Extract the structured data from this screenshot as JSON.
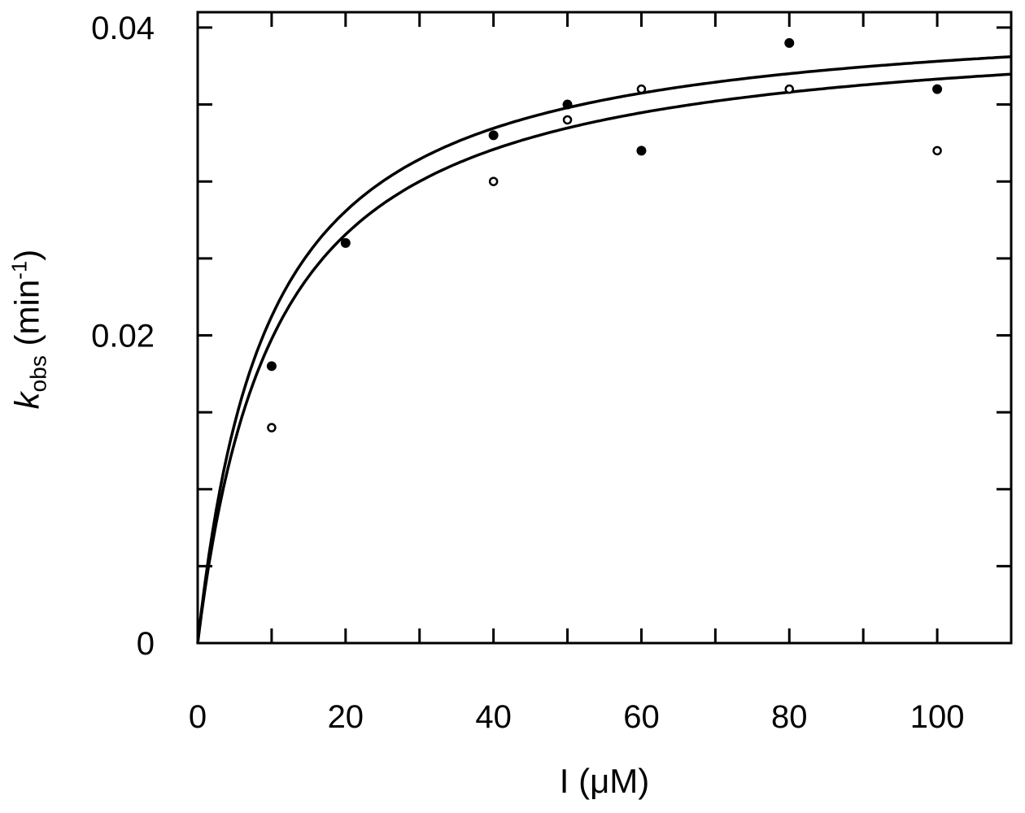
{
  "chart_data": {
    "type": "scatter",
    "xlabel": "I  (μM)",
    "ylabel": {
      "symbol": "k",
      "subscript": "obs",
      "unit_prefix": " (min",
      "unit_sup": "-1",
      "unit_suffix": ")"
    },
    "xlim": [
      0,
      110
    ],
    "ylim": [
      0,
      0.041
    ],
    "x_ticks_labeled": [
      0,
      20,
      40,
      60,
      80,
      100
    ],
    "x_ticks_minor": [
      10,
      30,
      50,
      70,
      90,
      110
    ],
    "y_ticks_labeled": [
      0,
      0.02,
      0.04
    ],
    "y_tick_labels": [
      "0",
      "0.02",
      "0.04"
    ],
    "y_ticks_minor": [
      0.005,
      0.01,
      0.015,
      0.025,
      0.03,
      0.035
    ],
    "grid": false,
    "series": [
      {
        "marker": "filled-circle",
        "points": [
          [
            10,
            0.018
          ],
          [
            20,
            0.026
          ],
          [
            40,
            0.033
          ],
          [
            50,
            0.035
          ],
          [
            60,
            0.032
          ],
          [
            80,
            0.039
          ],
          [
            100,
            0.036
          ]
        ]
      },
      {
        "marker": "open-circle",
        "points": [
          [
            10,
            0.014
          ],
          [
            40,
            0.03
          ],
          [
            50,
            0.034
          ],
          [
            60,
            0.036
          ],
          [
            80,
            0.036
          ],
          [
            100,
            0.032
          ]
        ]
      }
    ],
    "fit_curves": [
      {
        "type": "hyperbolic",
        "kmax": 0.0414,
        "K": 9.5
      },
      {
        "type": "hyperbolic",
        "kmax": 0.0405,
        "K": 10.5
      }
    ]
  }
}
